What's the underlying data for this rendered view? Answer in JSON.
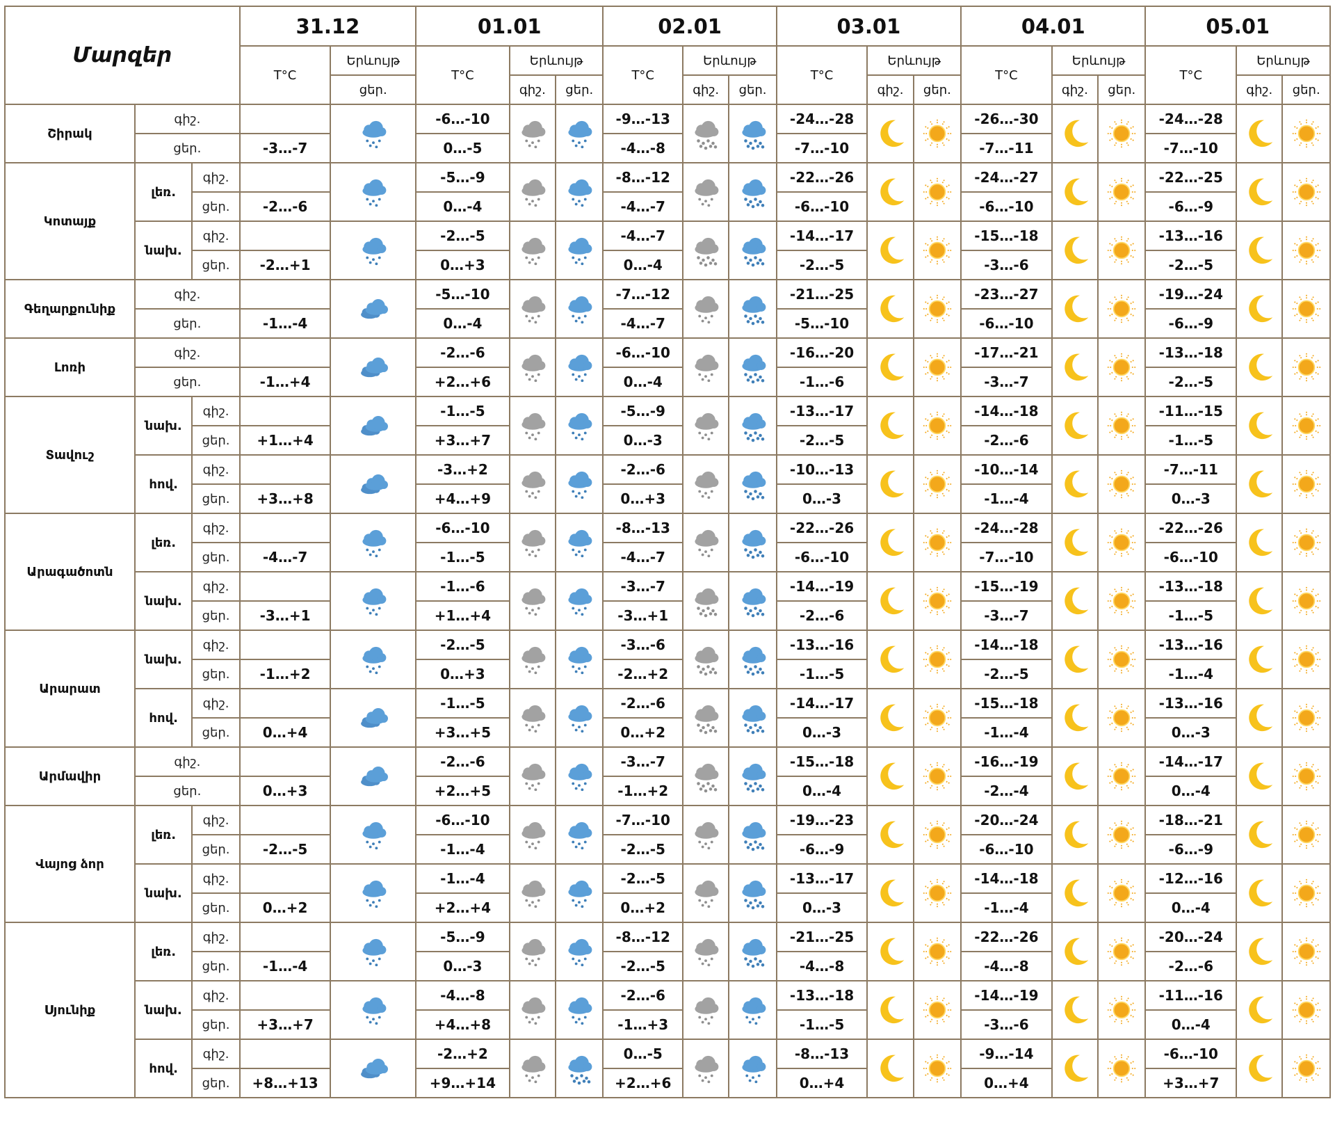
{
  "header": {
    "title": "Մարզեր",
    "dates": [
      "31.12",
      "01.01",
      "02.01",
      "03.01",
      "04.01",
      "05.01"
    ],
    "temp_label": "T°C",
    "weather_label": "Երևույթ",
    "night_label": "գիշ.",
    "day_label": "ցեր."
  },
  "regions": [
    {
      "name": "Շիրակ",
      "subs": [
        {
          "name": "",
          "temps": [
            [
              "",
              "-3…-7"
            ],
            [
              "-6…-10",
              "0…-5"
            ],
            [
              "-9…-13",
              "-4…-8"
            ],
            [
              "-24…-28",
              "-7…-10"
            ],
            [
              "-26…-30",
              "-7…-11"
            ],
            [
              "-24…-28",
              "-7…-10"
            ]
          ],
          "icons": [
            "snow-cloud",
            "gray-snow-cloud",
            "blue-snow-cloud",
            "gray-heavy-snow-cloud",
            "blue-heavy-snow-cloud"
          ]
        }
      ]
    },
    {
      "name": "Կոտայք",
      "subs": [
        {
          "name": "լեռ.",
          "temps": [
            [
              "",
              "-2…-6"
            ],
            [
              "-5…-9",
              "0…-4"
            ],
            [
              "-8…-12",
              "-4…-7"
            ],
            [
              "-22…-26",
              "-6…-10"
            ],
            [
              "-24…-27",
              "-6…-10"
            ],
            [
              "-22…-25",
              "-6…-9"
            ]
          ],
          "icons": [
            "snow-cloud",
            "gray-snow-cloud",
            "blue-snow-cloud",
            "gray-snow-cloud",
            "blue-heavy-snow-cloud"
          ]
        },
        {
          "name": "նախ.",
          "temps": [
            [
              "",
              "-2…+1"
            ],
            [
              "-2…-5",
              "0…+3"
            ],
            [
              "-4…-7",
              "0…-4"
            ],
            [
              "-14…-17",
              "-2…-5"
            ],
            [
              "-15…-18",
              "-3…-6"
            ],
            [
              "-13…-16",
              "-2…-5"
            ]
          ],
          "icons": [
            "snow-cloud",
            "gray-snow-cloud",
            "blue-snow-cloud",
            "gray-heavy-snow-cloud",
            "blue-heavy-snow-cloud"
          ]
        }
      ]
    },
    {
      "name": "Գեղարքունիք",
      "subs": [
        {
          "name": "",
          "temps": [
            [
              "",
              "-1…-4"
            ],
            [
              "-5…-10",
              "0…-4"
            ],
            [
              "-7…-12",
              "-4…-7"
            ],
            [
              "-21…-25",
              "-5…-10"
            ],
            [
              "-23…-27",
              "-6…-10"
            ],
            [
              "-19…-24",
              "-6…-9"
            ]
          ],
          "icons": [
            "cloudy",
            "gray-snow-cloud",
            "blue-snow-cloud",
            "gray-snow-cloud",
            "blue-heavy-snow-cloud"
          ]
        }
      ]
    },
    {
      "name": "Լոռի",
      "subs": [
        {
          "name": "",
          "temps": [
            [
              "",
              "-1…+4"
            ],
            [
              "-2…-6",
              "+2…+6"
            ],
            [
              "-6…-10",
              "0…-4"
            ],
            [
              "-16…-20",
              "-1…-6"
            ],
            [
              "-17…-21",
              "-3…-7"
            ],
            [
              "-13…-18",
              "-2…-5"
            ]
          ],
          "icons": [
            "cloudy",
            "gray-snow-cloud",
            "blue-snow-cloud",
            "gray-snow-cloud",
            "blue-heavy-snow-cloud"
          ]
        }
      ]
    },
    {
      "name": "Տավուշ",
      "subs": [
        {
          "name": "նախ.",
          "temps": [
            [
              "",
              "+1…+4"
            ],
            [
              "-1…-5",
              "+3…+7"
            ],
            [
              "-5…-9",
              "0…-3"
            ],
            [
              "-13…-17",
              "-2…-5"
            ],
            [
              "-14…-18",
              "-2…-6"
            ],
            [
              "-11…-15",
              "-1…-5"
            ]
          ],
          "icons": [
            "cloudy",
            "gray-snow-cloud",
            "blue-snow-cloud",
            "gray-snow-cloud",
            "blue-heavy-snow-cloud"
          ]
        },
        {
          "name": "հով.",
          "temps": [
            [
              "",
              "+3…+8"
            ],
            [
              "-3…+2",
              "+4…+9"
            ],
            [
              "-2…-6",
              "0…+3"
            ],
            [
              "-10…-13",
              "0…-3"
            ],
            [
              "-10…-14",
              "-1…-4"
            ],
            [
              "-7…-11",
              "0…-3"
            ]
          ],
          "icons": [
            "cloudy",
            "gray-snow-cloud",
            "blue-snow-cloud",
            "gray-snow-cloud",
            "blue-heavy-snow-cloud"
          ]
        }
      ]
    },
    {
      "name": "Արագածոտն",
      "subs": [
        {
          "name": "լեռ.",
          "temps": [
            [
              "",
              "-4…-7"
            ],
            [
              "-6…-10",
              "-1…-5"
            ],
            [
              "-8…-13",
              "-4…-7"
            ],
            [
              "-22…-26",
              "-6…-10"
            ],
            [
              "-24…-28",
              "-7…-10"
            ],
            [
              "-22…-26",
              "-6…-10"
            ]
          ],
          "icons": [
            "snow-cloud",
            "gray-snow-cloud",
            "blue-snow-cloud",
            "gray-snow-cloud",
            "blue-heavy-snow-cloud"
          ]
        },
        {
          "name": "նախ.",
          "temps": [
            [
              "",
              "-3…+1"
            ],
            [
              "-1…-6",
              "+1…+4"
            ],
            [
              "-3…-7",
              "-3…+1"
            ],
            [
              "-14…-19",
              "-2…-6"
            ],
            [
              "-15…-19",
              "-3…-7"
            ],
            [
              "-13…-18",
              "-1…-5"
            ]
          ],
          "icons": [
            "snow-cloud",
            "gray-snow-cloud",
            "blue-snow-cloud",
            "gray-heavy-snow-cloud",
            "blue-heavy-snow-cloud"
          ]
        }
      ]
    },
    {
      "name": "Արարատ",
      "subs": [
        {
          "name": "նախ.",
          "temps": [
            [
              "",
              "-1…+2"
            ],
            [
              "-2…-5",
              "0…+3"
            ],
            [
              "-3…-6",
              "-2…+2"
            ],
            [
              "-13…-16",
              "-1…-5"
            ],
            [
              "-14…-18",
              "-2…-5"
            ],
            [
              "-13…-16",
              "-1…-4"
            ]
          ],
          "icons": [
            "snow-cloud",
            "gray-snow-cloud",
            "blue-snow-cloud",
            "gray-heavy-snow-cloud",
            "blue-heavy-snow-cloud"
          ]
        },
        {
          "name": "հով.",
          "temps": [
            [
              "",
              "0…+4"
            ],
            [
              "-1…-5",
              "+3…+5"
            ],
            [
              "-2…-6",
              "0…+2"
            ],
            [
              "-14…-17",
              "0…-3"
            ],
            [
              "-15…-18",
              "-1…-4"
            ],
            [
              "-13…-16",
              "0…-3"
            ]
          ],
          "icons": [
            "cloudy",
            "gray-snow-cloud",
            "blue-snow-cloud",
            "gray-heavy-snow-cloud",
            "blue-heavy-snow-cloud"
          ]
        }
      ]
    },
    {
      "name": "Արմավիր",
      "subs": [
        {
          "name": "",
          "temps": [
            [
              "",
              "0…+3"
            ],
            [
              "-2…-6",
              "+2…+5"
            ],
            [
              "-3…-7",
              "-1…+2"
            ],
            [
              "-15…-18",
              "0…-4"
            ],
            [
              "-16…-19",
              "-2…-4"
            ],
            [
              "-14…-17",
              "0…-4"
            ]
          ],
          "icons": [
            "cloudy",
            "gray-snow-cloud",
            "blue-snow-cloud",
            "gray-heavy-snow-cloud",
            "blue-heavy-snow-cloud"
          ]
        }
      ]
    },
    {
      "name": "Վայոց ձոր",
      "subs": [
        {
          "name": "լեռ.",
          "temps": [
            [
              "",
              "-2…-5"
            ],
            [
              "-6…-10",
              "-1…-4"
            ],
            [
              "-7…-10",
              "-2…-5"
            ],
            [
              "-19…-23",
              "-6…-9"
            ],
            [
              "-20…-24",
              "-6…-10"
            ],
            [
              "-18…-21",
              "-6…-9"
            ]
          ],
          "icons": [
            "snow-cloud",
            "gray-snow-cloud",
            "blue-snow-cloud",
            "gray-snow-cloud",
            "blue-heavy-snow-cloud"
          ]
        },
        {
          "name": "նախ.",
          "temps": [
            [
              "",
              "0…+2"
            ],
            [
              "-1…-4",
              "+2…+4"
            ],
            [
              "-2…-5",
              "0…+2"
            ],
            [
              "-13…-17",
              "0…-3"
            ],
            [
              "-14…-18",
              "-1…-4"
            ],
            [
              "-12…-16",
              "0…-4"
            ]
          ],
          "icons": [
            "snow-cloud",
            "gray-snow-cloud",
            "blue-snow-cloud",
            "gray-snow-cloud",
            "blue-heavy-snow-cloud"
          ]
        }
      ]
    },
    {
      "name": "Սյունիք",
      "subs": [
        {
          "name": "լեռ.",
          "temps": [
            [
              "",
              "-1…-4"
            ],
            [
              "-5…-9",
              "0…-3"
            ],
            [
              "-8…-12",
              "-2…-5"
            ],
            [
              "-21…-25",
              "-4…-8"
            ],
            [
              "-22…-26",
              "-4…-8"
            ],
            [
              "-20…-24",
              "-2…-6"
            ]
          ],
          "icons": [
            "snow-cloud",
            "gray-snow-cloud",
            "blue-snow-cloud",
            "gray-snow-cloud",
            "blue-heavy-snow-cloud"
          ]
        },
        {
          "name": "նախ.",
          "temps": [
            [
              "",
              "+3…+7"
            ],
            [
              "-4…-8",
              "+4…+8"
            ],
            [
              "-2…-6",
              "-1…+3"
            ],
            [
              "-13…-18",
              "-1…-5"
            ],
            [
              "-14…-19",
              "-3…-6"
            ],
            [
              "-11…-16",
              "0…-4"
            ]
          ],
          "icons": [
            "snow-cloud",
            "gray-snow-cloud",
            "blue-snow-cloud",
            "gray-snow-cloud",
            "blue-snow-cloud"
          ]
        },
        {
          "name": "հով.",
          "temps": [
            [
              "",
              "+8…+13"
            ],
            [
              "-2…+2",
              "+9…+14"
            ],
            [
              "0…-5",
              "+2…+6"
            ],
            [
              "-8…-13",
              "0…+4"
            ],
            [
              "-9…-14",
              "0…+4"
            ],
            [
              "-6…-10",
              "+3…+7"
            ]
          ],
          "icons": [
            "cloudy",
            "gray-snow-cloud",
            "blue-heavy-snow-cloud",
            "gray-snow-cloud",
            "blue-snow-cloud"
          ]
        }
      ]
    }
  ],
  "colors": {
    "grid_border": "#8c7a62",
    "cloud_blue": "#5b9fd8",
    "cloud_gray": "#a2a2a2",
    "moon": "#f7c21c",
    "sun": "#f3a81b"
  }
}
